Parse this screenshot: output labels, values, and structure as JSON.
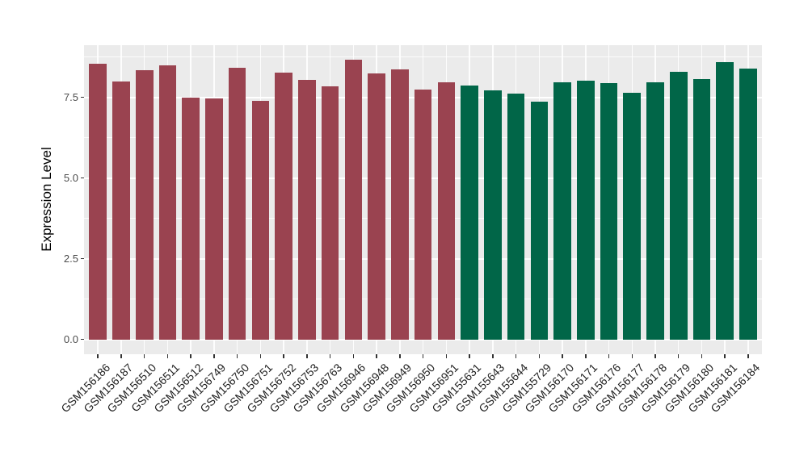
{
  "chart_data": {
    "type": "bar",
    "title": "",
    "xlabel": "",
    "ylabel": "Expression Level",
    "ylim": [
      0,
      9.12
    ],
    "grid": true,
    "legend": "none",
    "yticks": {
      "values": [
        0,
        2.5,
        5,
        7.5
      ],
      "labels": [
        "0.0",
        "2.5",
        "5.0",
        "7.5"
      ]
    },
    "minor_grid_values": [
      1.25,
      3.75,
      6.25,
      8.75
    ],
    "colors": {
      "group1": "#9A4350",
      "group2": "#016648",
      "panel_background": "#EBEBEB",
      "gridline": "#FFFFFF",
      "axis_tick": "#333333",
      "y_axis_text": "#4D4D4D",
      "x_axis_text": "#1F1F1F"
    },
    "bars": [
      {
        "label": "GSM156186",
        "value": 8.54,
        "group": "group1"
      },
      {
        "label": "GSM156187",
        "value": 8.0,
        "group": "group1"
      },
      {
        "label": "GSM156510",
        "value": 8.35,
        "group": "group1"
      },
      {
        "label": "GSM156511",
        "value": 8.49,
        "group": "group1"
      },
      {
        "label": "GSM156512",
        "value": 7.49,
        "group": "group1"
      },
      {
        "label": "GSM156749",
        "value": 7.47,
        "group": "group1"
      },
      {
        "label": "GSM156750",
        "value": 8.41,
        "group": "group1"
      },
      {
        "label": "GSM156751",
        "value": 7.39,
        "group": "group1"
      },
      {
        "label": "GSM156752",
        "value": 8.27,
        "group": "group1"
      },
      {
        "label": "GSM156753",
        "value": 8.04,
        "group": "group1"
      },
      {
        "label": "GSM156763",
        "value": 7.84,
        "group": "group1"
      },
      {
        "label": "GSM156946",
        "value": 8.67,
        "group": "group1"
      },
      {
        "label": "GSM156948",
        "value": 8.24,
        "group": "group1"
      },
      {
        "label": "GSM156949",
        "value": 8.38,
        "group": "group1"
      },
      {
        "label": "GSM156950",
        "value": 7.75,
        "group": "group1"
      },
      {
        "label": "GSM156951",
        "value": 7.97,
        "group": "group1"
      },
      {
        "label": "GSM155631",
        "value": 7.88,
        "group": "group2"
      },
      {
        "label": "GSM155643",
        "value": 7.73,
        "group": "group2"
      },
      {
        "label": "GSM155644",
        "value": 7.63,
        "group": "group2"
      },
      {
        "label": "GSM155729",
        "value": 7.38,
        "group": "group2"
      },
      {
        "label": "GSM156170",
        "value": 7.97,
        "group": "group2"
      },
      {
        "label": "GSM156171",
        "value": 8.03,
        "group": "group2"
      },
      {
        "label": "GSM156176",
        "value": 7.95,
        "group": "group2"
      },
      {
        "label": "GSM156177",
        "value": 7.64,
        "group": "group2"
      },
      {
        "label": "GSM156178",
        "value": 7.97,
        "group": "group2"
      },
      {
        "label": "GSM156179",
        "value": 8.3,
        "group": "group2"
      },
      {
        "label": "GSM156180",
        "value": 8.06,
        "group": "group2"
      },
      {
        "label": "GSM156181",
        "value": 8.6,
        "group": "group2"
      },
      {
        "label": "GSM156184",
        "value": 8.4,
        "group": "group2"
      }
    ]
  }
}
